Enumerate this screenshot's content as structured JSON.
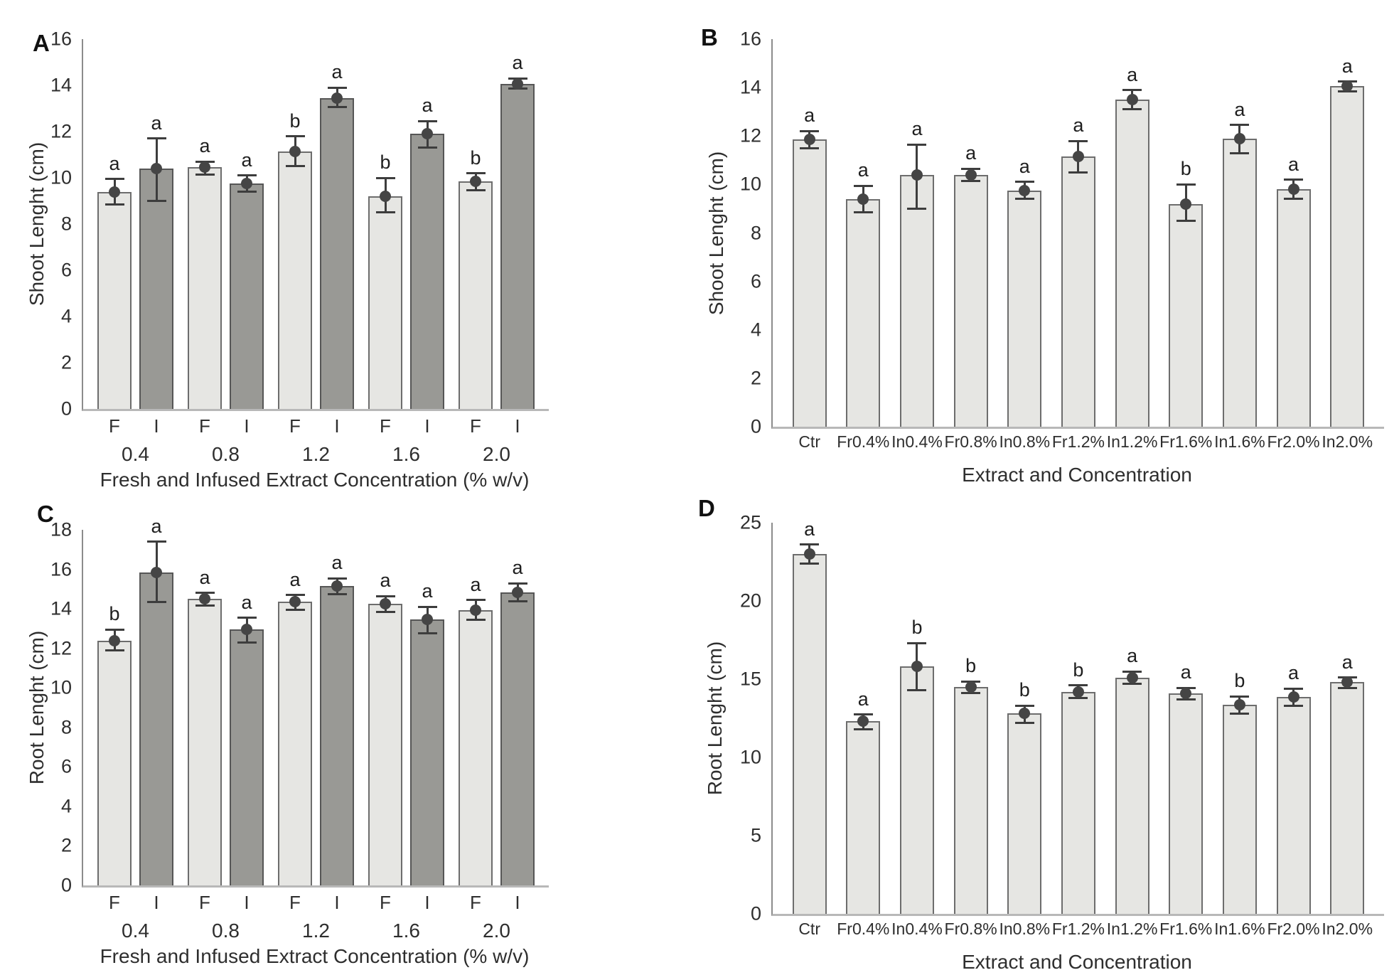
{
  "figure": {
    "background": "#ffffff",
    "panel_labels": [
      "A",
      "B",
      "C",
      "D"
    ]
  },
  "colors": {
    "light_bar_fill": "#e6e6e3",
    "light_bar_border": "#6d6d6d",
    "dark_bar_fill": "#999995",
    "dark_bar_border": "#565656",
    "error_bar": "#3d3d3d",
    "mean_marker": "#454545",
    "y_axis_line": "#8c8c8c",
    "x_axis_line": "#b8b8b8",
    "text": "#2e2e2e"
  },
  "chart_data": [
    {
      "id": "A",
      "type": "bar",
      "panel_label": "A",
      "ylabel": "Shoot Lenght (cm)",
      "xlabel": "Fresh and Infused Extract Concentration (% w/v)",
      "ylim": [
        0,
        16
      ],
      "yticks": [
        0,
        2,
        4,
        6,
        8,
        10,
        12,
        14,
        16
      ],
      "grouped": true,
      "groups": [
        {
          "label": "0.4",
          "bars": [
            {
              "label": "F",
              "shade": "light",
              "value": 9.4,
              "err_low": 8.85,
              "err_high": 9.95,
              "letter": "a"
            },
            {
              "label": "I",
              "shade": "dark",
              "value": 10.4,
              "err_low": 9.0,
              "err_high": 11.7,
              "letter": "a"
            }
          ]
        },
        {
          "label": "0.8",
          "bars": [
            {
              "label": "F",
              "shade": "light",
              "value": 10.45,
              "err_low": 10.15,
              "err_high": 10.7,
              "letter": "a"
            },
            {
              "label": "I",
              "shade": "dark",
              "value": 9.75,
              "err_low": 9.4,
              "err_high": 10.1,
              "letter": "a"
            }
          ]
        },
        {
          "label": "1.2",
          "bars": [
            {
              "label": "F",
              "shade": "light",
              "value": 11.15,
              "err_low": 10.5,
              "err_high": 11.8,
              "letter": "b"
            },
            {
              "label": "I",
              "shade": "dark",
              "value": 13.45,
              "err_low": 13.05,
              "err_high": 13.9,
              "letter": "a"
            }
          ]
        },
        {
          "label": "1.6",
          "bars": [
            {
              "label": "F",
              "shade": "light",
              "value": 9.2,
              "err_low": 8.5,
              "err_high": 10.0,
              "letter": "b"
            },
            {
              "label": "I",
              "shade": "dark",
              "value": 11.9,
              "err_low": 11.3,
              "err_high": 12.45,
              "letter": "a"
            }
          ]
        },
        {
          "label": "2.0",
          "bars": [
            {
              "label": "F",
              "shade": "light",
              "value": 9.85,
              "err_low": 9.45,
              "err_high": 10.2,
              "letter": "b"
            },
            {
              "label": "I",
              "shade": "dark",
              "value": 14.05,
              "err_low": 13.85,
              "err_high": 14.3,
              "letter": "a"
            }
          ]
        }
      ]
    },
    {
      "id": "B",
      "type": "bar",
      "panel_label": "B",
      "ylabel": "Shoot Lenght (cm)",
      "xlabel": "Extract and Concentration",
      "ylim": [
        0,
        16
      ],
      "yticks": [
        0,
        2,
        4,
        6,
        8,
        10,
        12,
        14,
        16
      ],
      "grouped": false,
      "bars": [
        {
          "label": "Ctr",
          "shade": "light",
          "value": 11.85,
          "err_low": 11.5,
          "err_high": 12.2,
          "letter": "a"
        },
        {
          "label": "Fr0.4%",
          "shade": "light",
          "value": 9.4,
          "err_low": 8.85,
          "err_high": 9.95,
          "letter": "a"
        },
        {
          "label": "In0.4%",
          "shade": "light",
          "value": 10.4,
          "err_low": 9.0,
          "err_high": 11.65,
          "letter": "a"
        },
        {
          "label": "Fr0.8%",
          "shade": "light",
          "value": 10.4,
          "err_low": 10.15,
          "err_high": 10.65,
          "letter": "a"
        },
        {
          "label": "In0.8%",
          "shade": "light",
          "value": 9.75,
          "err_low": 9.4,
          "err_high": 10.1,
          "letter": "a"
        },
        {
          "label": "Fr1.2%",
          "shade": "light",
          "value": 11.15,
          "err_low": 10.5,
          "err_high": 11.8,
          "letter": "a"
        },
        {
          "label": "In1.2%",
          "shade": "light",
          "value": 13.5,
          "err_low": 13.1,
          "err_high": 13.9,
          "letter": "a"
        },
        {
          "label": "Fr1.6%",
          "shade": "light",
          "value": 9.2,
          "err_low": 8.5,
          "err_high": 10.0,
          "letter": "b"
        },
        {
          "label": "In1.6%",
          "shade": "light",
          "value": 11.9,
          "err_low": 11.3,
          "err_high": 12.45,
          "letter": "a"
        },
        {
          "label": "Fr2.0%",
          "shade": "light",
          "value": 9.8,
          "err_low": 9.4,
          "err_high": 10.2,
          "letter": "a"
        },
        {
          "label": "In2.0%",
          "shade": "light",
          "value": 14.05,
          "err_low": 13.85,
          "err_high": 14.25,
          "letter": "a"
        }
      ]
    },
    {
      "id": "C",
      "type": "bar",
      "panel_label": "C",
      "ylabel": "Root Lenght (cm)",
      "xlabel": "Fresh and Infused Extract Concentration (% w/v)",
      "ylim": [
        0,
        18
      ],
      "yticks": [
        0,
        2,
        4,
        6,
        8,
        10,
        12,
        14,
        16,
        18
      ],
      "grouped": true,
      "groups": [
        {
          "label": "0.4",
          "bars": [
            {
              "label": "F",
              "shade": "light",
              "value": 12.4,
              "err_low": 11.9,
              "err_high": 12.95,
              "letter": "b"
            },
            {
              "label": "I",
              "shade": "dark",
              "value": 15.85,
              "err_low": 14.35,
              "err_high": 17.4,
              "letter": "a"
            }
          ]
        },
        {
          "label": "0.8",
          "bars": [
            {
              "label": "F",
              "shade": "light",
              "value": 14.5,
              "err_low": 14.15,
              "err_high": 14.8,
              "letter": "a"
            },
            {
              "label": "I",
              "shade": "dark",
              "value": 12.95,
              "err_low": 12.3,
              "err_high": 13.55,
              "letter": "a"
            }
          ]
        },
        {
          "label": "1.2",
          "bars": [
            {
              "label": "F",
              "shade": "light",
              "value": 14.35,
              "err_low": 13.95,
              "err_high": 14.7,
              "letter": "a"
            },
            {
              "label": "I",
              "shade": "dark",
              "value": 15.15,
              "err_low": 14.75,
              "err_high": 15.55,
              "letter": "a"
            }
          ]
        },
        {
          "label": "1.6",
          "bars": [
            {
              "label": "F",
              "shade": "light",
              "value": 14.25,
              "err_low": 13.85,
              "err_high": 14.65,
              "letter": "a"
            },
            {
              "label": "I",
              "shade": "dark",
              "value": 13.45,
              "err_low": 12.75,
              "err_high": 14.1,
              "letter": "a"
            }
          ]
        },
        {
          "label": "2.0",
          "bars": [
            {
              "label": "F",
              "shade": "light",
              "value": 13.95,
              "err_low": 13.45,
              "err_high": 14.45,
              "letter": "a"
            },
            {
              "label": "I",
              "shade": "dark",
              "value": 14.85,
              "err_low": 14.4,
              "err_high": 15.3,
              "letter": "a"
            }
          ]
        }
      ]
    },
    {
      "id": "D",
      "type": "bar",
      "panel_label": "D",
      "ylabel": "Root Lenght (cm)",
      "xlabel": "Extract and Concentration",
      "ylim": [
        0,
        25
      ],
      "yticks": [
        0,
        5,
        10,
        15,
        20,
        25
      ],
      "grouped": false,
      "bars": [
        {
          "label": "Ctr",
          "shade": "light",
          "value": 23.0,
          "err_low": 22.4,
          "err_high": 23.6,
          "letter": "a"
        },
        {
          "label": "Fr0.4%",
          "shade": "light",
          "value": 12.3,
          "err_low": 11.8,
          "err_high": 12.75,
          "letter": "a"
        },
        {
          "label": "In0.4%",
          "shade": "light",
          "value": 15.8,
          "err_low": 14.3,
          "err_high": 17.3,
          "letter": "b"
        },
        {
          "label": "Fr0.8%",
          "shade": "light",
          "value": 14.5,
          "err_low": 14.1,
          "err_high": 14.85,
          "letter": "b"
        },
        {
          "label": "In0.8%",
          "shade": "light",
          "value": 12.8,
          "err_low": 12.2,
          "err_high": 13.3,
          "letter": "b"
        },
        {
          "label": "Fr1.2%",
          "shade": "light",
          "value": 14.2,
          "err_low": 13.8,
          "err_high": 14.6,
          "letter": "b"
        },
        {
          "label": "In1.2%",
          "shade": "light",
          "value": 15.1,
          "err_low": 14.7,
          "err_high": 15.5,
          "letter": "a"
        },
        {
          "label": "Fr1.6%",
          "shade": "light",
          "value": 14.1,
          "err_low": 13.7,
          "err_high": 14.45,
          "letter": "a"
        },
        {
          "label": "In1.6%",
          "shade": "light",
          "value": 13.35,
          "err_low": 12.8,
          "err_high": 13.9,
          "letter": "b"
        },
        {
          "label": "Fr2.0%",
          "shade": "light",
          "value": 13.85,
          "err_low": 13.3,
          "err_high": 14.4,
          "letter": "a"
        },
        {
          "label": "In2.0%",
          "shade": "light",
          "value": 14.8,
          "err_low": 14.45,
          "err_high": 15.1,
          "letter": "a"
        }
      ]
    }
  ]
}
